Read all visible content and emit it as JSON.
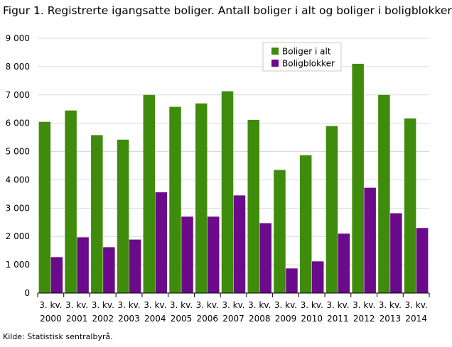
{
  "figure": {
    "title": "Figur 1. Registrerte igangsatte boliger. Antall boliger i alt og boliger i boligblokker",
    "source": "Kilde: Statistisk sentralbyrå."
  },
  "chart_data": {
    "type": "bar",
    "title": "Figur 1. Registrerte igangsatte boliger. Antall boliger i alt og boliger i boligblokker",
    "categories": [
      [
        "3. kv.",
        "2000"
      ],
      [
        "3. kv.",
        "2001"
      ],
      [
        "3. kv.",
        "2002"
      ],
      [
        "3. kv.",
        "2003"
      ],
      [
        "3. kv.",
        "2004"
      ],
      [
        "3. kv.",
        "2005"
      ],
      [
        "3. kv.",
        "2006"
      ],
      [
        "3. kv.",
        "2007"
      ],
      [
        "3. kv.",
        "2008"
      ],
      [
        "3. kv.",
        "2009"
      ],
      [
        "3. kv.",
        "2010"
      ],
      [
        "3. kv.",
        "2011"
      ],
      [
        "3. kv.",
        "2012"
      ],
      [
        "3. kv.",
        "2013"
      ],
      [
        "3. kv.",
        "2014"
      ]
    ],
    "series": [
      {
        "name": "Boliger i alt",
        "color": "#3f8b0c",
        "values": [
          6050,
          6450,
          5580,
          5420,
          7000,
          6580,
          6700,
          7130,
          6120,
          4350,
          4870,
          5900,
          8100,
          7000,
          6170
        ]
      },
      {
        "name": "Boligblokker",
        "color": "#6b0a8a",
        "values": [
          1270,
          1970,
          1620,
          1890,
          3560,
          2700,
          2700,
          3450,
          2470,
          870,
          1120,
          2100,
          3720,
          2820,
          2300
        ]
      }
    ],
    "ylim": [
      0,
      9000
    ],
    "yticks": [
      {
        "value": 0,
        "label": "0"
      },
      {
        "value": 1000,
        "label": "1 000"
      },
      {
        "value": 2000,
        "label": "2 000"
      },
      {
        "value": 3000,
        "label": "3 000"
      },
      {
        "value": 4000,
        "label": "4 000"
      },
      {
        "value": 5000,
        "label": "5 000"
      },
      {
        "value": 6000,
        "label": "6 000"
      },
      {
        "value": 7000,
        "label": "7 000"
      },
      {
        "value": 8000,
        "label": "8 000"
      },
      {
        "value": 9000,
        "label": "9 000"
      }
    ],
    "xlabel": "",
    "ylabel": "",
    "grid": "horizontal",
    "legend": "top-right"
  }
}
